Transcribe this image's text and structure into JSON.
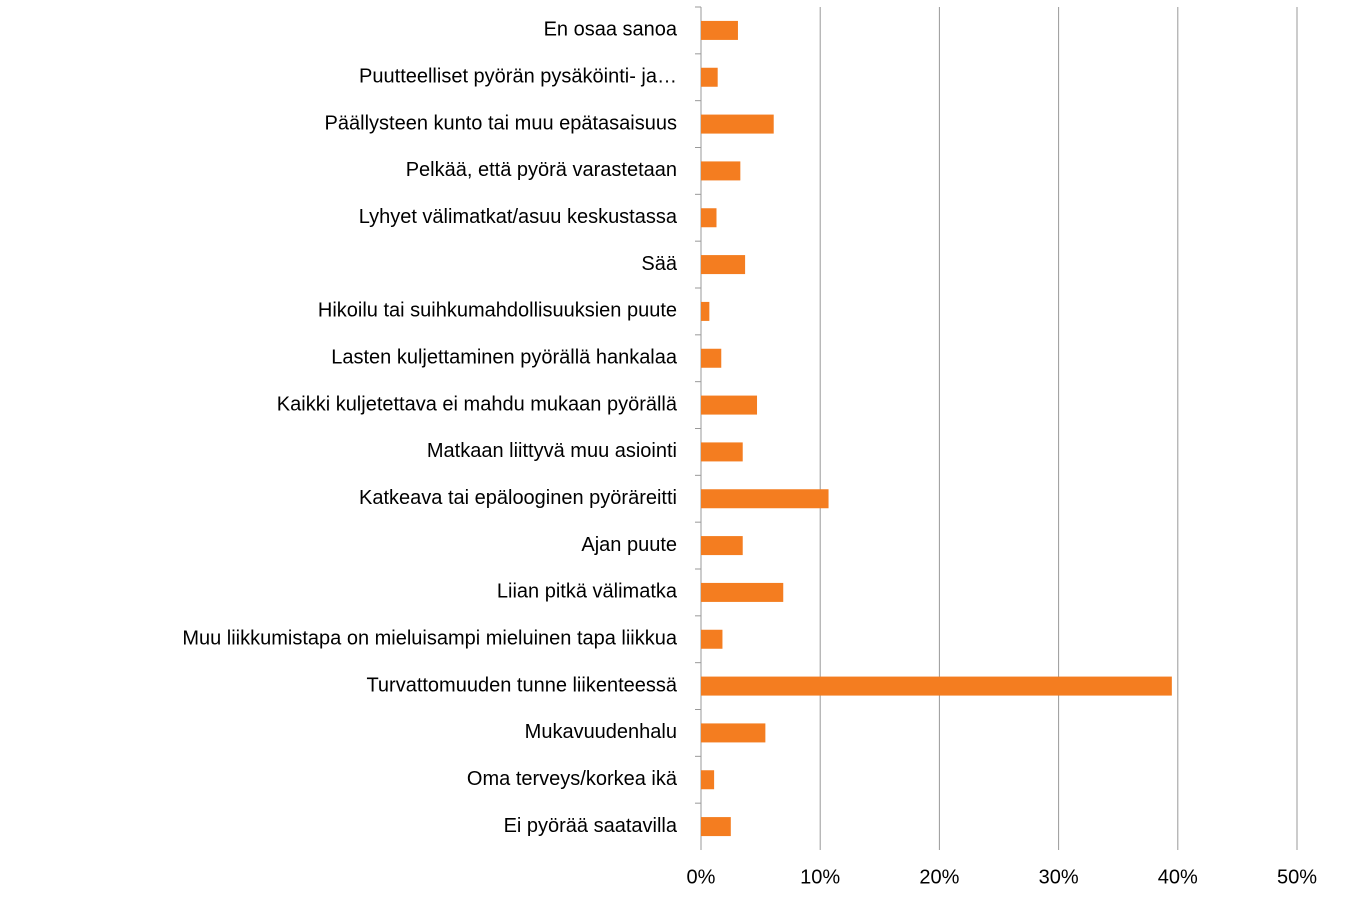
{
  "chart_data": {
    "type": "barh",
    "categories": [
      "En osaa sanoa",
      "Puutteelliset pyörän pysäköinti- ja…",
      "Päällysteen kunto tai muu epätasaisuus",
      "Pelkää, että pyörä varastetaan",
      "Lyhyet välimatkat/asuu keskustassa",
      "Sää",
      "Hikoilu tai suihkumahdollisuuksien puute",
      "Lasten kuljettaminen pyörällä hankalaa",
      "Kaikki kuljetettava ei mahdu mukaan pyörällä",
      "Matkaan liittyvä muu asiointi",
      "Katkeava tai epälooginen pyöräreitti",
      "Ajan puute",
      "Liian pitkä välimatka",
      "Muu liikkumistapa on mieluisampi mieluinen tapa liikkua",
      "Turvattomuuden tunne liikenteessä",
      "Mukavuudenhalu",
      "Oma terveys/korkea ikä",
      "Ei pyörää saatavilla"
    ],
    "values": [
      3.1,
      1.4,
      6.1,
      3.3,
      1.3,
      3.7,
      0.7,
      1.7,
      4.7,
      3.5,
      10.7,
      3.5,
      6.9,
      1.8,
      39.5,
      5.4,
      1.1,
      2.5
    ],
    "color": "#f47d20",
    "xlim": [
      0,
      50
    ],
    "xticks": [
      {
        "value": 0,
        "label": "0%"
      },
      {
        "value": 10,
        "label": "10%"
      },
      {
        "value": 20,
        "label": "20%"
      },
      {
        "value": 30,
        "label": "30%"
      },
      {
        "value": 40,
        "label": "40%"
      },
      {
        "value": 50,
        "label": "50%"
      }
    ],
    "grid": true
  }
}
